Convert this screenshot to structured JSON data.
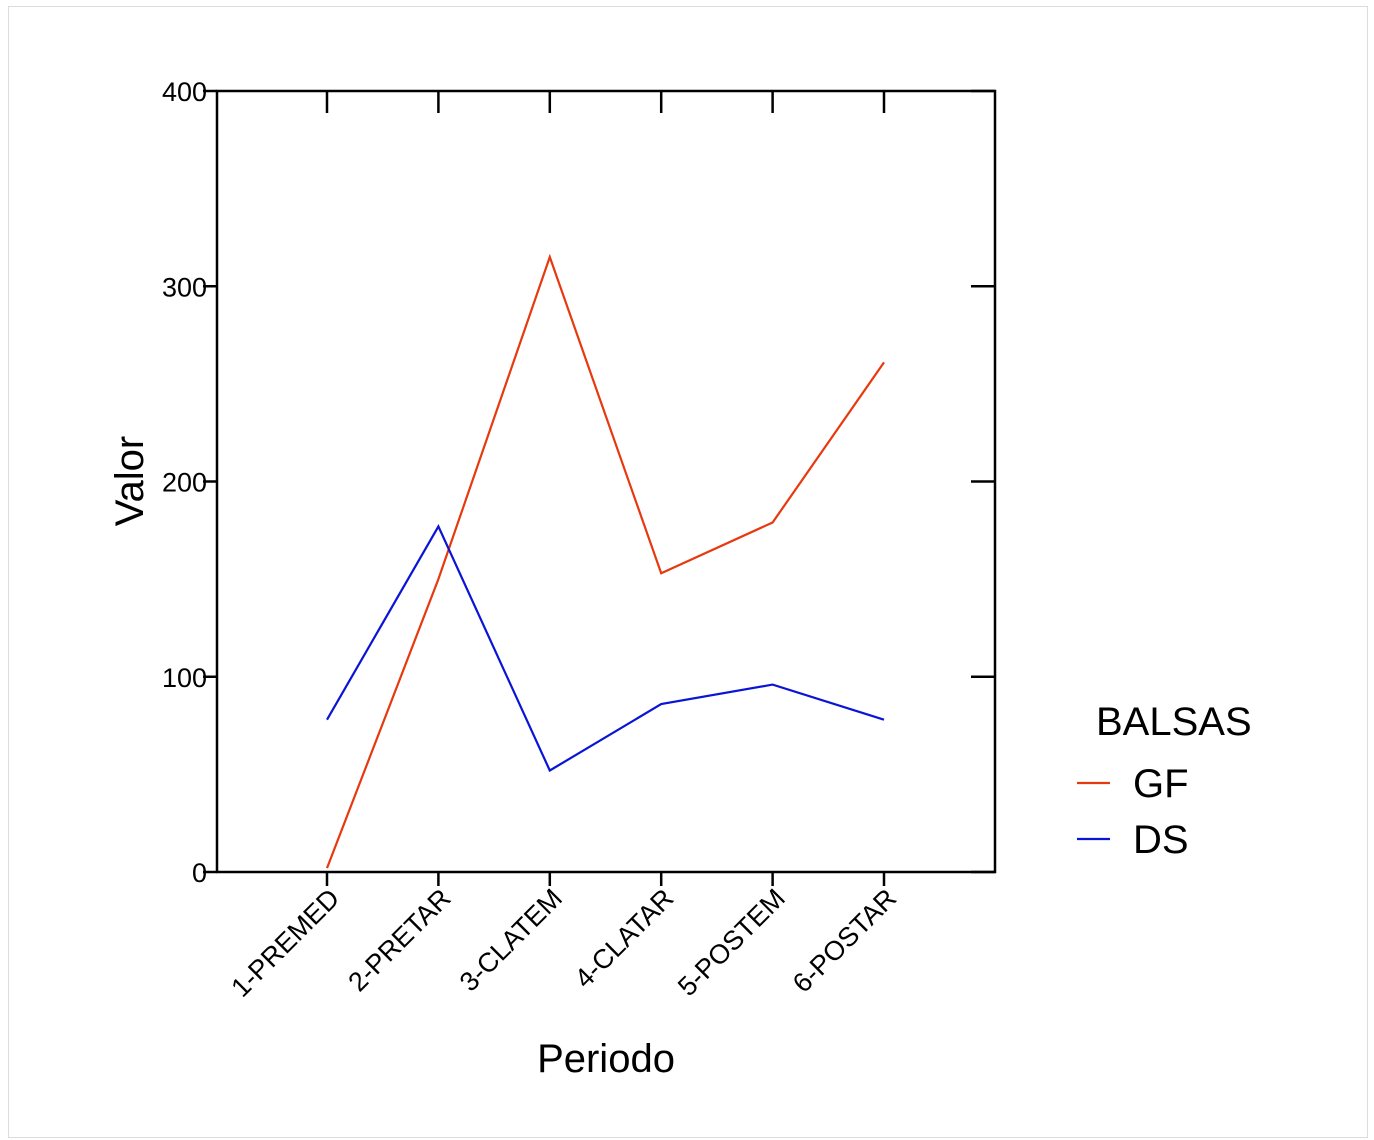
{
  "chart_data": {
    "type": "line",
    "title": "",
    "xlabel": "Periodo",
    "ylabel": "Valor",
    "categories": [
      "1-PREMED",
      "2-PRETAR",
      "3-CLATEM",
      "4-CLATAR",
      "5-POSTEM",
      "6-POSTAR"
    ],
    "yticks": [
      "0",
      "100",
      "200",
      "300",
      "400"
    ],
    "ylim": [
      0,
      400
    ],
    "grid": false,
    "legend": {
      "title": "BALSAS",
      "placement": "right"
    },
    "series": [
      {
        "name": "GF",
        "color": "#e8380d",
        "values": [
          2,
          150,
          315,
          153,
          179,
          261
        ]
      },
      {
        "name": "DS",
        "color": "#0a14d6",
        "values": [
          78,
          177,
          52,
          86,
          96,
          78
        ]
      }
    ]
  }
}
